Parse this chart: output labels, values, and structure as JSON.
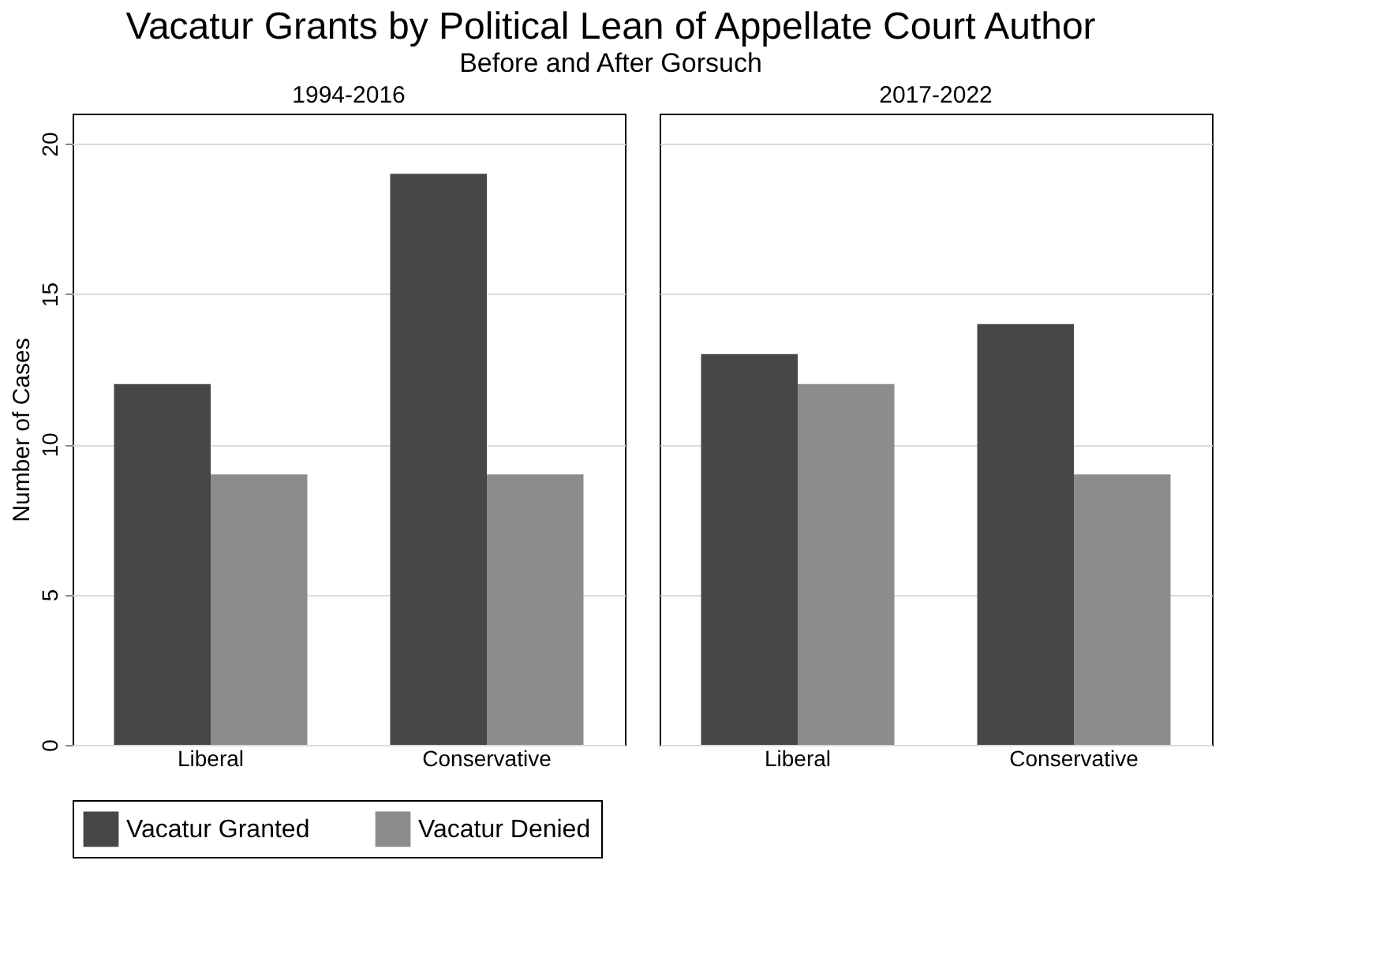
{
  "chart_data": [
    {
      "type": "other",
      "title": "Vacatur Grants by Political Lean of Appellate Court Author",
      "subtitle": "Before and After Gorsuch"
    },
    {
      "type": "bar",
      "title": "1994-2016",
      "ylabel": "Number of Cases",
      "categories": [
        "Liberal",
        "Conservative"
      ],
      "series": [
        {
          "name": "Vacatur Granted",
          "color": "#474747",
          "values": [
            12,
            19
          ]
        },
        {
          "name": "Vacatur Denied",
          "color": "#8c8c8c",
          "values": [
            9,
            9
          ]
        }
      ],
      "ylim": [
        0,
        21
      ],
      "yticks": [
        0,
        5,
        10,
        15,
        20
      ],
      "grid": "y",
      "legend": "bottom"
    },
    {
      "type": "bar",
      "title": "2017-2022",
      "categories": [
        "Liberal",
        "Conservative"
      ],
      "series": [
        {
          "name": "Vacatur Granted",
          "color": "#474747",
          "values": [
            13,
            14
          ]
        },
        {
          "name": "Vacatur Denied",
          "color": "#8c8c8c",
          "values": [
            12,
            9
          ]
        }
      ],
      "ylim": [
        0,
        21
      ],
      "yticks": [
        0,
        5,
        10,
        15,
        20
      ],
      "grid": "y",
      "legend": "bottom",
      "tick_labels": "x"
    }
  ]
}
